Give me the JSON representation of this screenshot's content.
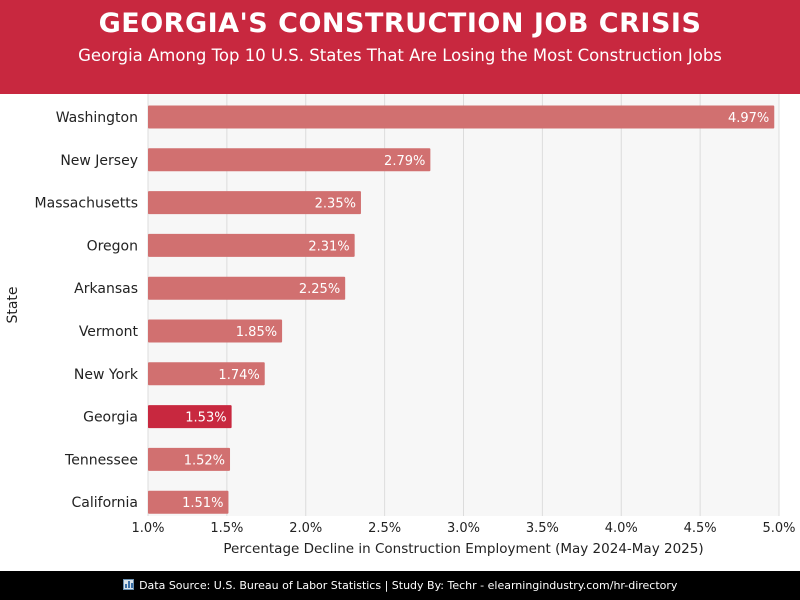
{
  "header": {
    "title": "GEORGIA'S CONSTRUCTION JOB CRISIS",
    "subtitle": "Georgia Among Top 10 U.S. States That Are Losing the Most Construction Jobs"
  },
  "footer": {
    "icon": "bar-chart-icon",
    "text": "Data Source: U.S. Bureau of Labor Statistics | Study By: Techr - elearningindustry.com/hr-directory"
  },
  "colors": {
    "header_bg": "#c8283f",
    "bar": "#d17070",
    "highlight_bar": "#c8283f",
    "footer_bg": "#000000"
  },
  "chart_data": {
    "type": "bar",
    "orientation": "horizontal",
    "categories": [
      "Washington",
      "New Jersey",
      "Massachusetts",
      "Oregon",
      "Arkansas",
      "Vermont",
      "New York",
      "Georgia",
      "Tennessee",
      "California"
    ],
    "values": [
      4.97,
      2.79,
      2.35,
      2.31,
      2.25,
      1.85,
      1.74,
      1.53,
      1.52,
      1.51
    ],
    "value_labels": [
      "4.97%",
      "2.79%",
      "2.35%",
      "2.31%",
      "2.25%",
      "1.85%",
      "1.74%",
      "1.53%",
      "1.52%",
      "1.51%"
    ],
    "highlight": "Georgia",
    "xlabel": "Percentage Decline in Construction Employment (May 2024-May 2025)",
    "ylabel": "State",
    "xlim": [
      1.0,
      5.0
    ],
    "xticks": [
      1.0,
      1.5,
      2.0,
      2.5,
      3.0,
      3.5,
      4.0,
      4.5,
      5.0
    ],
    "xtick_labels": [
      "1.0%",
      "1.5%",
      "2.0%",
      "2.5%",
      "3.0%",
      "3.5%",
      "4.0%",
      "4.5%",
      "5.0%"
    ],
    "grid": true
  }
}
